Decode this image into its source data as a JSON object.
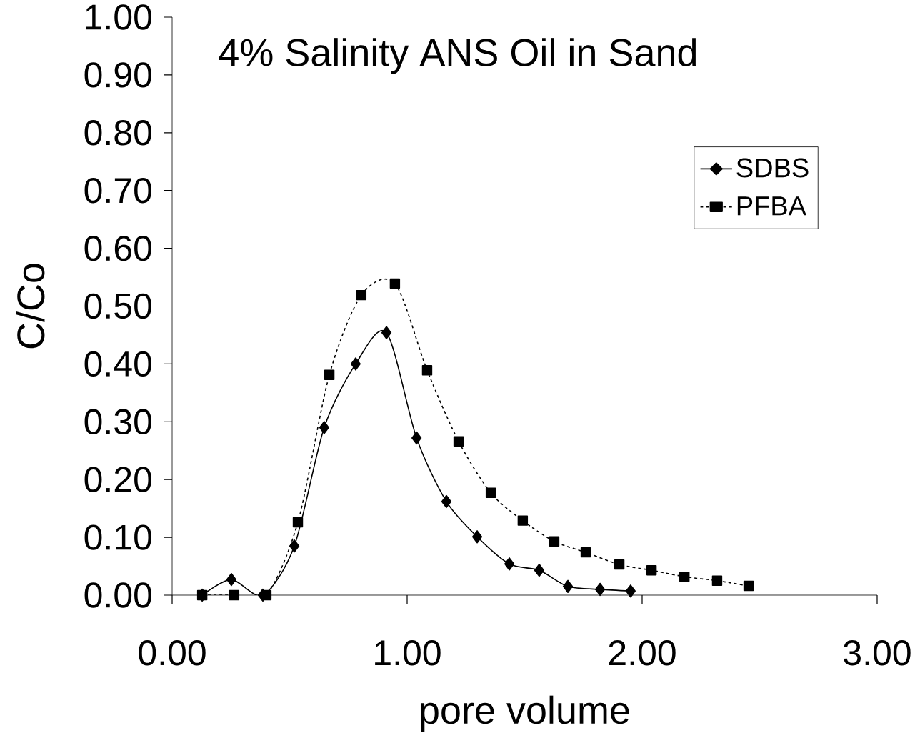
{
  "chart_data": {
    "type": "line",
    "title": "4% Salinity ANS Oil in Sand",
    "xlabel": "pore volume",
    "ylabel": "C/Co",
    "xlim": [
      0,
      3
    ],
    "ylim": [
      0,
      1
    ],
    "xticks": [
      {
        "value": 0,
        "label": "0.00"
      },
      {
        "value": 1,
        "label": "1.00"
      },
      {
        "value": 2,
        "label": "2.00"
      },
      {
        "value": 3,
        "label": "3.00"
      }
    ],
    "yticks": [
      {
        "value": 0,
        "label": "0.00"
      },
      {
        "value": 0.1,
        "label": "0.10"
      },
      {
        "value": 0.2,
        "label": "0.20"
      },
      {
        "value": 0.3,
        "label": "0.30"
      },
      {
        "value": 0.4,
        "label": "0.40"
      },
      {
        "value": 0.5,
        "label": "0.50"
      },
      {
        "value": 0.6,
        "label": "0.60"
      },
      {
        "value": 0.7,
        "label": "0.70"
      },
      {
        "value": 0.8,
        "label": "0.80"
      },
      {
        "value": 0.9,
        "label": "0.90"
      },
      {
        "value": 1,
        "label": "1.00"
      }
    ],
    "grid": false,
    "legend": "right",
    "series": [
      {
        "name": "SDBS",
        "color": "#000000",
        "marker": "diamond",
        "line_style": "solid",
        "x": [
          0.128,
          0.252,
          0.386,
          0.52,
          0.647,
          0.781,
          0.912,
          1.04,
          1.167,
          1.298,
          1.435,
          1.562,
          1.684,
          1.821,
          1.951
        ],
        "values": [
          0.0,
          0.027,
          0.0,
          0.085,
          0.29,
          0.4,
          0.454,
          0.272,
          0.162,
          0.101,
          0.054,
          0.043,
          0.015,
          0.01,
          0.007
        ]
      },
      {
        "name": "PFBA",
        "color": "#000000",
        "marker": "square",
        "line_style": "dotted",
        "x": [
          0.128,
          0.264,
          0.401,
          0.535,
          0.669,
          0.805,
          0.948,
          1.085,
          1.219,
          1.356,
          1.492,
          1.626,
          1.76,
          1.903,
          2.04,
          2.18,
          2.319,
          2.453
        ],
        "values": [
          0.0,
          0.0,
          0.0,
          0.126,
          0.381,
          0.519,
          0.539,
          0.389,
          0.266,
          0.177,
          0.129,
          0.093,
          0.074,
          0.053,
          0.043,
          0.032,
          0.025,
          0.016
        ]
      }
    ]
  }
}
